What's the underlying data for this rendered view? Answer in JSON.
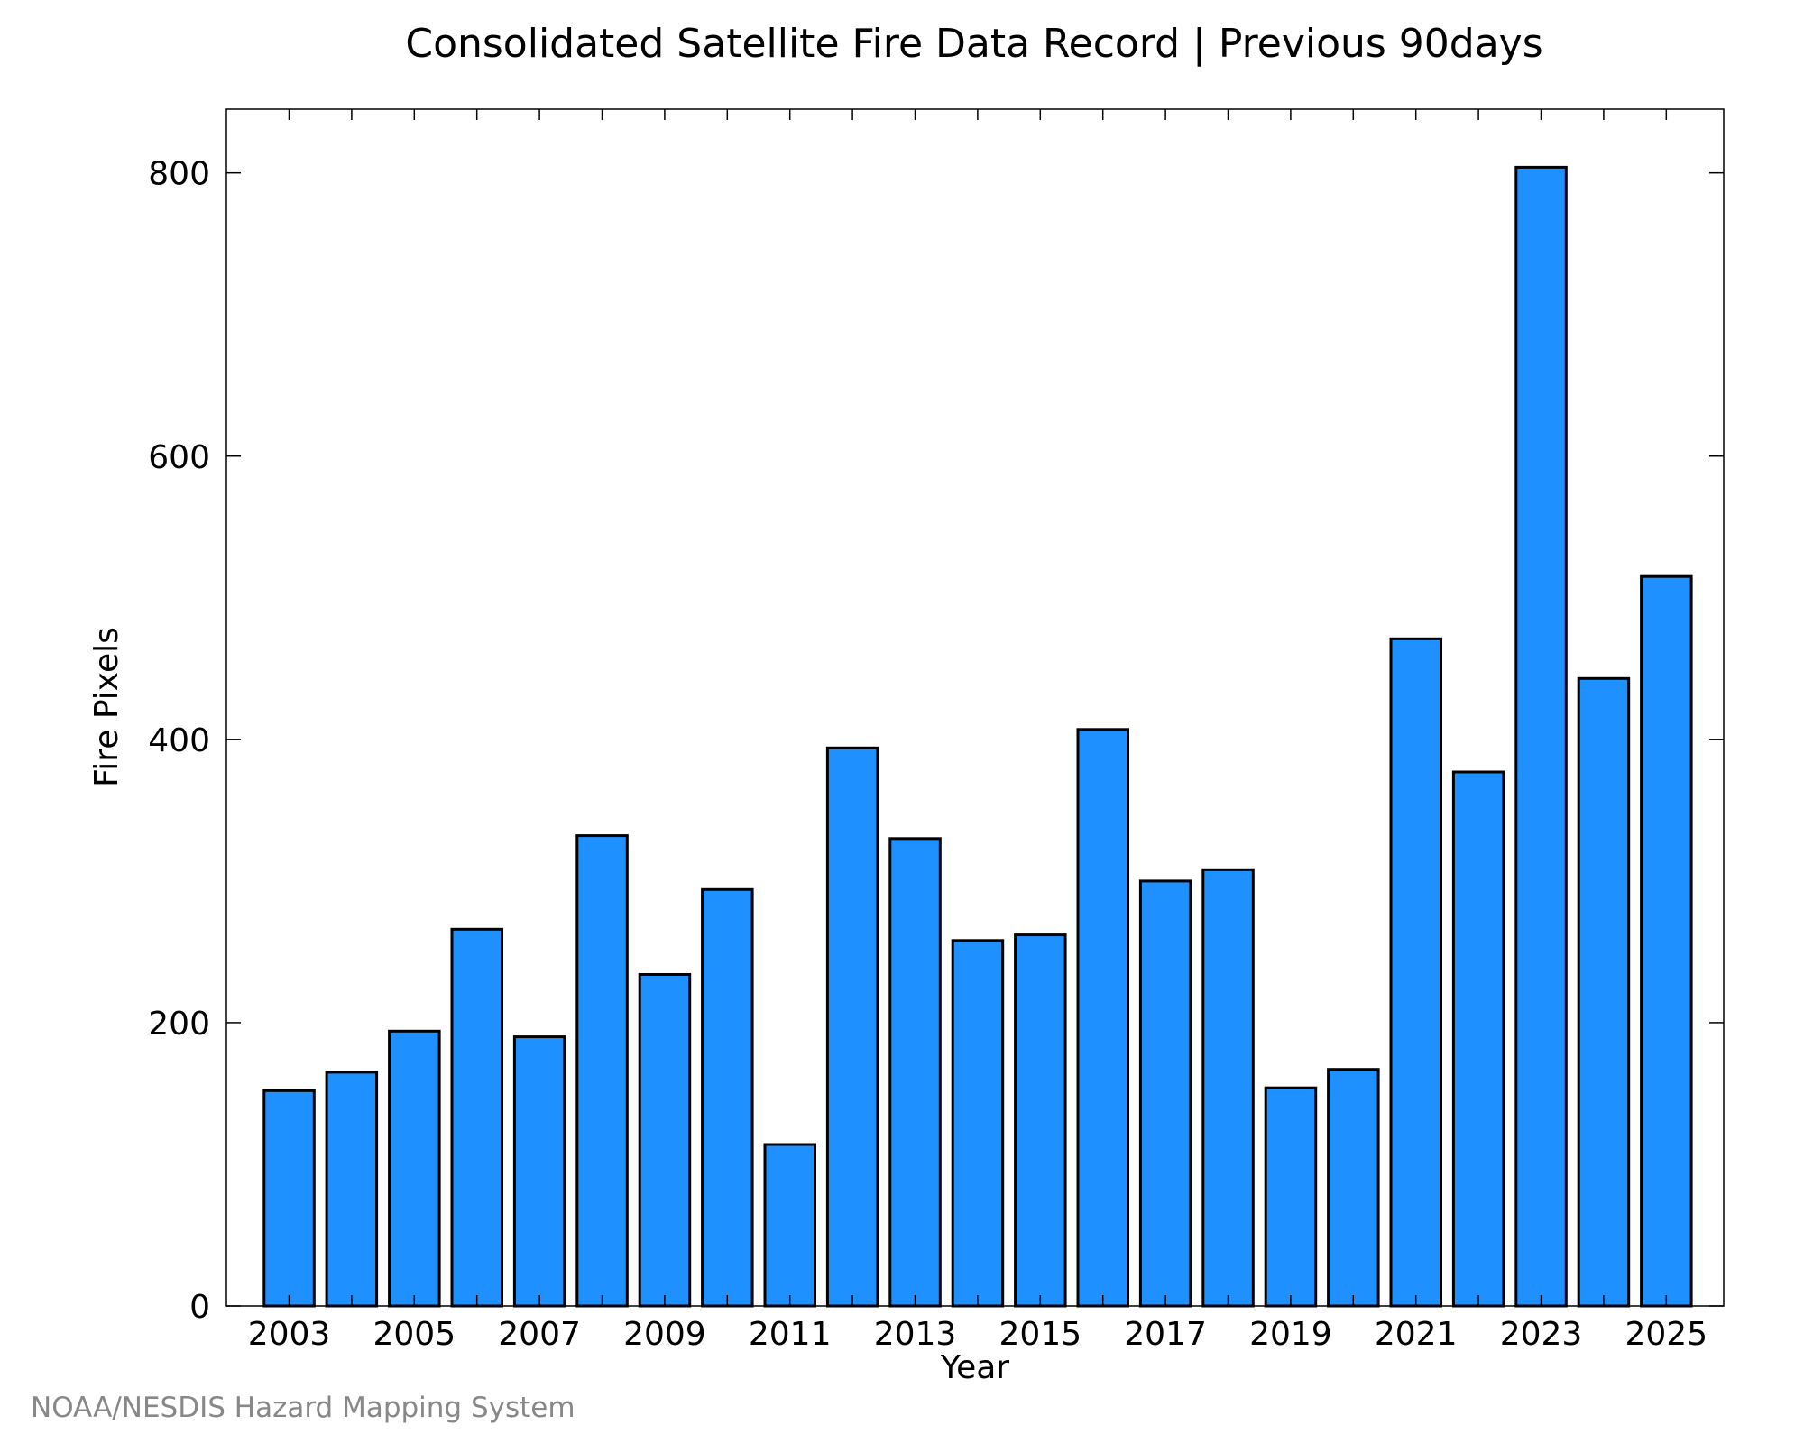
{
  "chart_data": {
    "type": "bar",
    "title": "Consolidated Satellite Fire Data Record | Previous 90days",
    "xlabel": "Year",
    "ylabel": "Fire Pixels",
    "categories": [
      2003,
      2004,
      2005,
      2006,
      2007,
      2008,
      2009,
      2010,
      2011,
      2012,
      2013,
      2014,
      2015,
      2016,
      2017,
      2018,
      2019,
      2020,
      2021,
      2022,
      2023,
      2024,
      2025
    ],
    "values": [
      152,
      165,
      194,
      266,
      190,
      332,
      234,
      294,
      114,
      394,
      330,
      258,
      262,
      407,
      300,
      308,
      154,
      167,
      471,
      377,
      804,
      443,
      515
    ],
    "x_ticks": [
      2003,
      2005,
      2007,
      2009,
      2011,
      2013,
      2015,
      2017,
      2019,
      2021,
      2023,
      2025
    ],
    "y_ticks": [
      0,
      200,
      400,
      600,
      800
    ],
    "ylim": [
      0,
      845
    ],
    "grid": false,
    "colors": {
      "bar_fill": "#1e90ff",
      "bar_edge": "#000000",
      "axes": "#000000"
    }
  },
  "footer": {
    "source": "NOAA/NESDIS Hazard Mapping System"
  }
}
